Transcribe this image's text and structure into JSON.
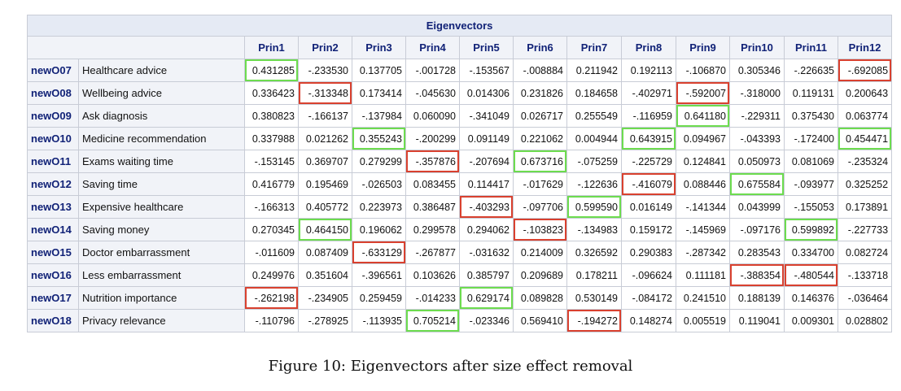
{
  "table": {
    "title": "Eigenvectors",
    "columns": [
      "Prin1",
      "Prin2",
      "Prin3",
      "Prin4",
      "Prin5",
      "Prin6",
      "Prin7",
      "Prin8",
      "Prin9",
      "Prin10",
      "Prin11",
      "Prin12"
    ],
    "rows": [
      {
        "id": "newO07",
        "label": "Healthcare advice",
        "values": [
          "0.431285",
          "-.233530",
          "0.137705",
          "-.001728",
          "-.153567",
          "-.008884",
          "0.211942",
          "0.192113",
          "-.106870",
          "0.305346",
          "-.226635",
          "-.692085"
        ],
        "highlights": {
          "0": "green",
          "11": "red"
        }
      },
      {
        "id": "newO08",
        "label": "Wellbeing advice",
        "values": [
          "0.336423",
          "-.313348",
          "0.173414",
          "-.045630",
          "0.014306",
          "0.231826",
          "0.184658",
          "-.402971",
          "-.592007",
          "-.318000",
          "0.119131",
          "0.200643"
        ],
        "highlights": {
          "1": "red",
          "8": "red"
        }
      },
      {
        "id": "newO09",
        "label": "Ask diagnosis",
        "values": [
          "0.380823",
          "-.166137",
          "-.137984",
          "0.060090",
          "-.341049",
          "0.026717",
          "0.255549",
          "-.116959",
          "0.641180",
          "-.229311",
          "0.375430",
          "0.063774"
        ],
        "highlights": {
          "8": "green"
        }
      },
      {
        "id": "newO10",
        "label": "Medicine recommendation",
        "values": [
          "0.337988",
          "0.021262",
          "0.355243",
          "-.200299",
          "0.091149",
          "0.221062",
          "0.004944",
          "0.643915",
          "0.094967",
          "-.043393",
          "-.172400",
          "0.454471"
        ],
        "highlights": {
          "2": "green",
          "7": "green",
          "11": "green"
        }
      },
      {
        "id": "newO11",
        "label": "Exams waiting time",
        "values": [
          "-.153145",
          "0.369707",
          "0.279299",
          "-.357876",
          "-.207694",
          "0.673716",
          "-.075259",
          "-.225729",
          "0.124841",
          "0.050973",
          "0.081069",
          "-.235324"
        ],
        "highlights": {
          "3": "red",
          "5": "green"
        }
      },
      {
        "id": "newO12",
        "label": "Saving time",
        "values": [
          "0.416779",
          "0.195469",
          "-.026503",
          "0.083455",
          "0.114417",
          "-.017629",
          "-.122636",
          "-.416079",
          "0.088446",
          "0.675584",
          "-.093977",
          "0.325252"
        ],
        "highlights": {
          "7": "red",
          "9": "green"
        }
      },
      {
        "id": "newO13",
        "label": "Expensive healthcare",
        "values": [
          "-.166313",
          "0.405772",
          "0.223973",
          "0.386487",
          "-.403293",
          "-.097706",
          "0.599590",
          "0.016149",
          "-.141344",
          "0.043999",
          "-.155053",
          "0.173891"
        ],
        "highlights": {
          "4": "red",
          "6": "green"
        }
      },
      {
        "id": "newO14",
        "label": "Saving money",
        "values": [
          "0.270345",
          "0.464150",
          "0.196062",
          "0.299578",
          "0.294062",
          "-.103823",
          "-.134983",
          "0.159172",
          "-.145969",
          "-.097176",
          "0.599892",
          "-.227733"
        ],
        "highlights": {
          "1": "green",
          "5": "red",
          "10": "green"
        }
      },
      {
        "id": "newO15",
        "label": "Doctor embarrassment",
        "values": [
          "-.011609",
          "0.087409",
          "-.633129",
          "-.267877",
          "-.031632",
          "0.214009",
          "0.326592",
          "0.290383",
          "-.287342",
          "0.283543",
          "0.334700",
          "0.082724"
        ],
        "highlights": {
          "2": "red"
        }
      },
      {
        "id": "newO16",
        "label": "Less embarrassment",
        "values": [
          "0.249976",
          "0.351604",
          "-.396561",
          "0.103626",
          "0.385797",
          "0.209689",
          "0.178211",
          "-.096624",
          "0.111181",
          "-.388354",
          "-.480544",
          "-.133718"
        ],
        "highlights": {
          "9": "red",
          "10": "red"
        }
      },
      {
        "id": "newO17",
        "label": "Nutrition importance",
        "values": [
          "-.262198",
          "-.234905",
          "0.259459",
          "-.014233",
          "0.629174",
          "0.089828",
          "0.530149",
          "-.084172",
          "0.241510",
          "0.188139",
          "0.146376",
          "-.036464"
        ],
        "highlights": {
          "0": "red",
          "4": "green"
        }
      },
      {
        "id": "newO18",
        "label": "Privacy relevance",
        "values": [
          "-.110796",
          "-.278925",
          "-.113935",
          "0.705214",
          "-.023346",
          "0.569410",
          "-.194272",
          "0.148274",
          "0.005519",
          "0.119041",
          "0.009301",
          "0.028802"
        ],
        "highlights": {
          "3": "green",
          "6": "red"
        }
      }
    ]
  },
  "colors": {
    "green_highlight": "#6ddc4f",
    "red_highlight": "#d9412f",
    "header_text": "#112277"
  },
  "caption": "Figure 10: Eigenvectors after size effect removal"
}
